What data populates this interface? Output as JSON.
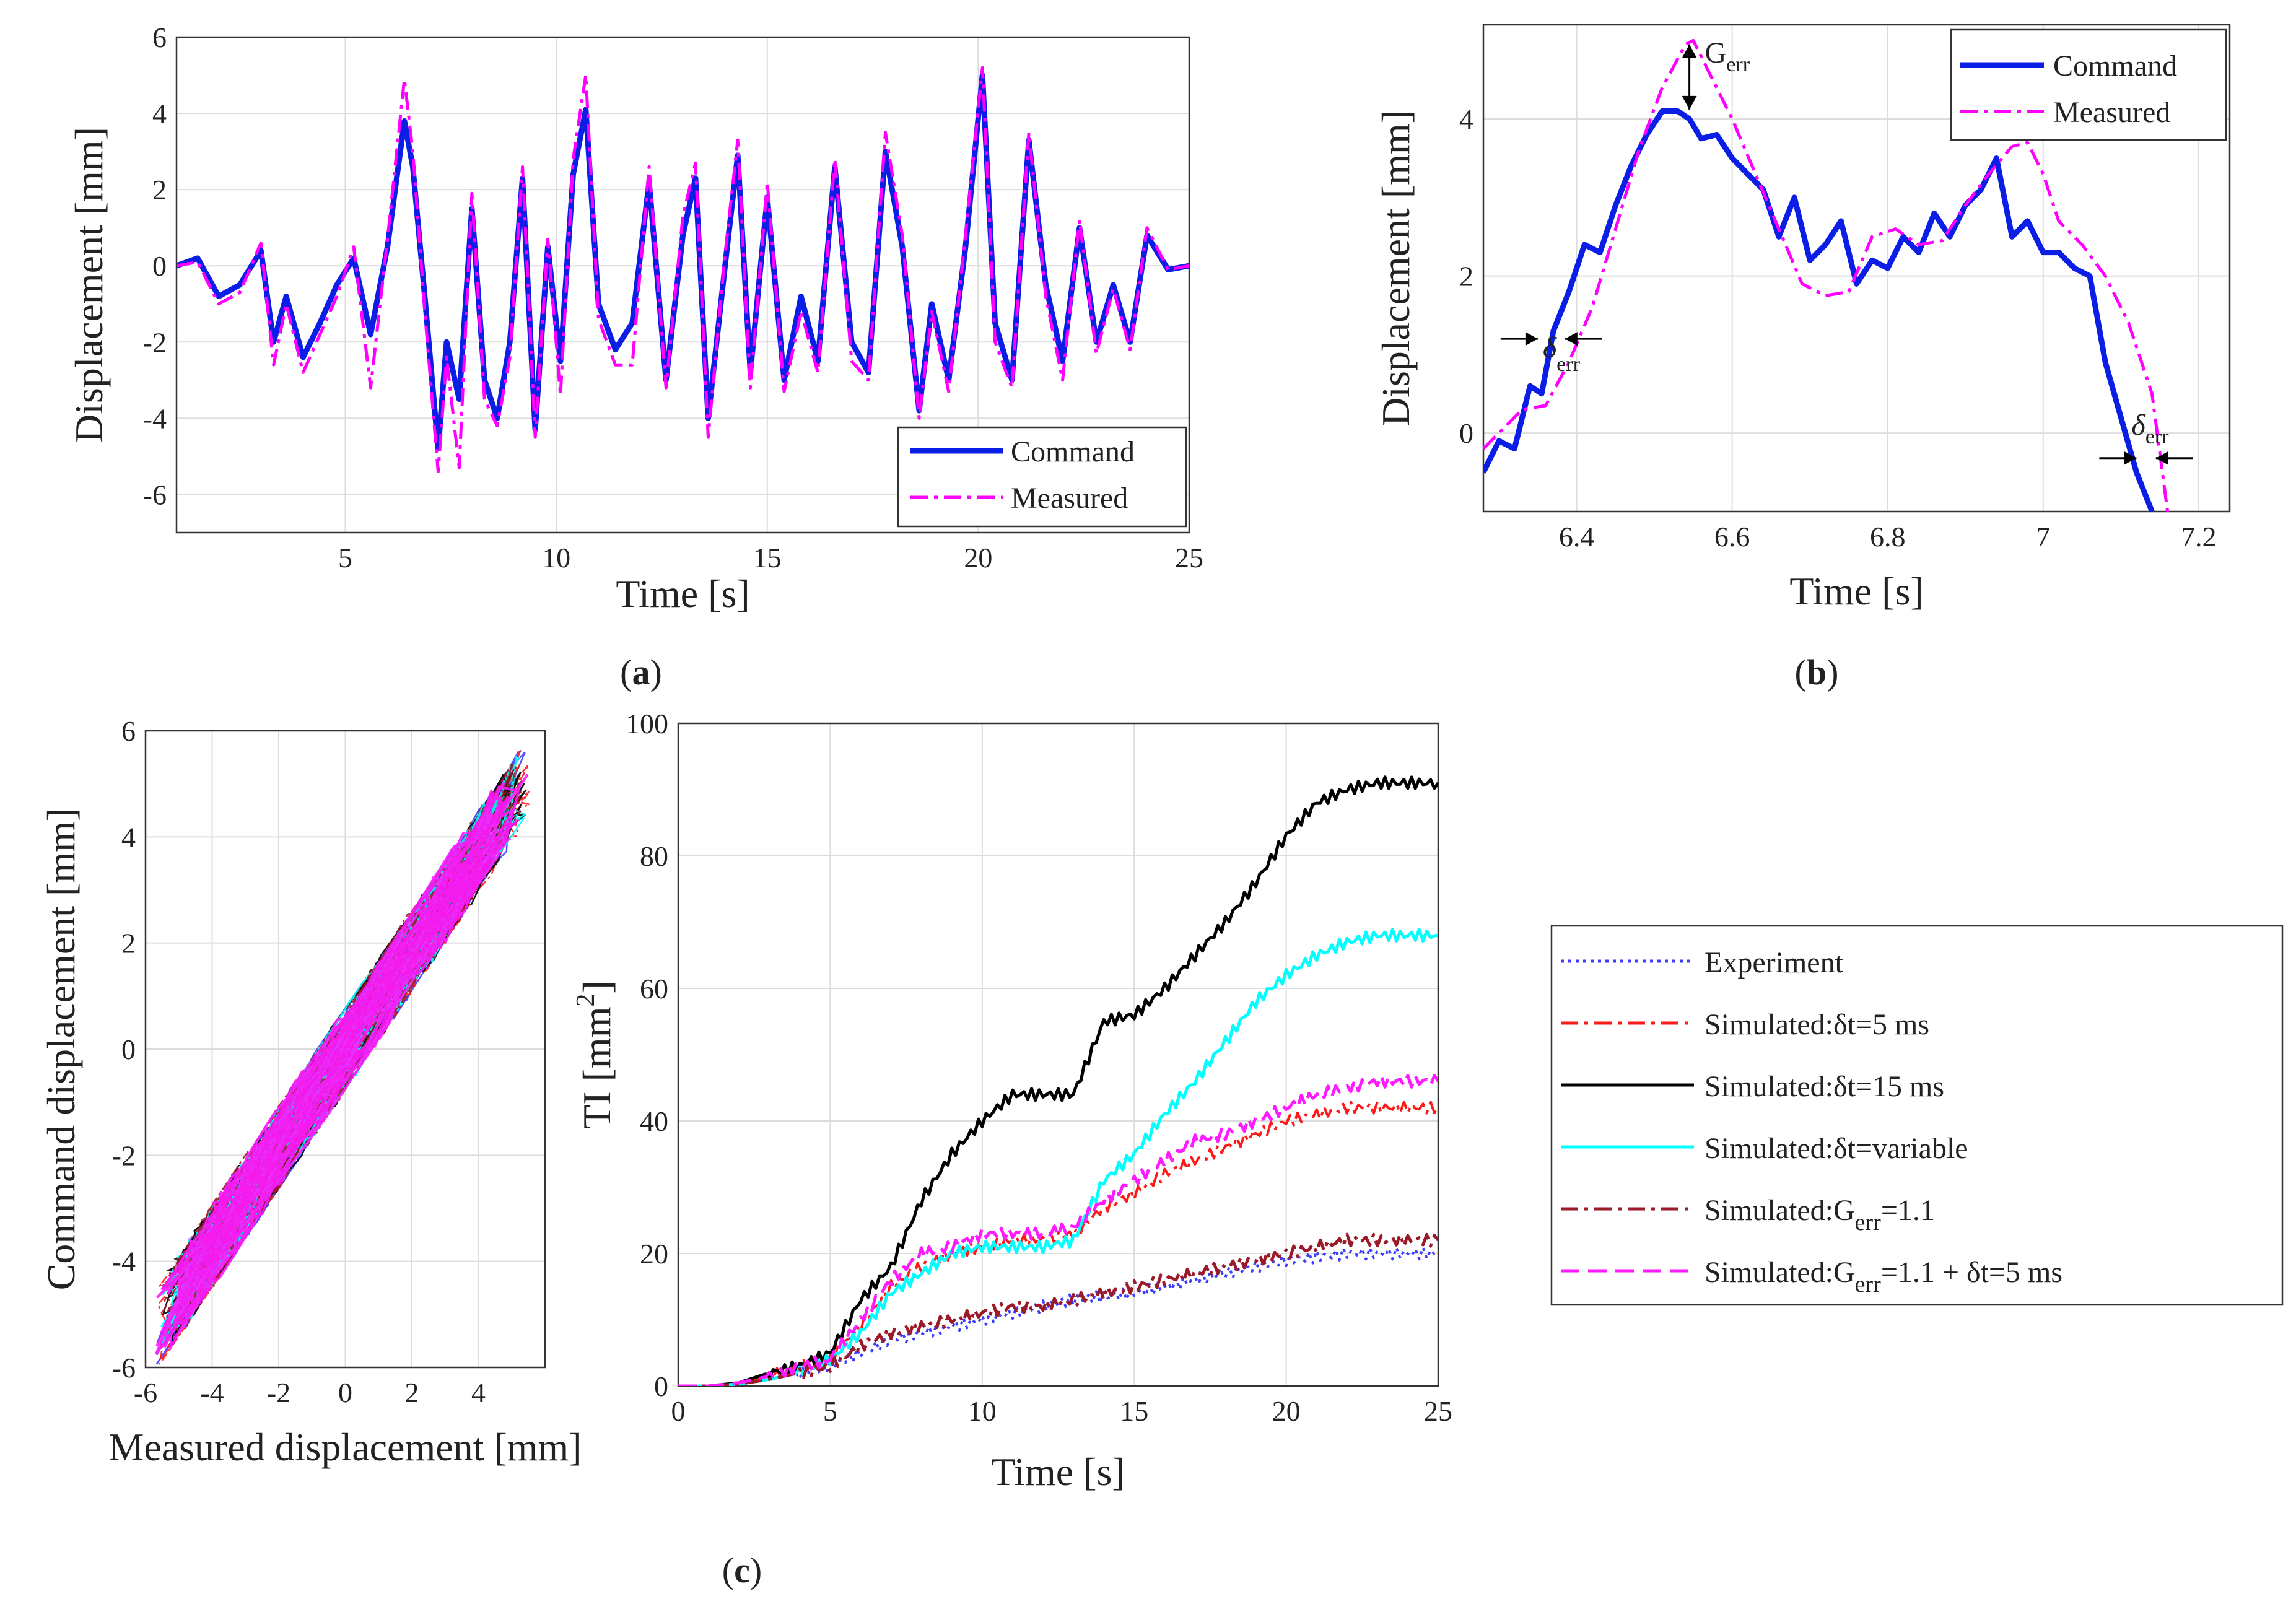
{
  "figure": {
    "captions": {
      "a": "a",
      "b": "b",
      "c": "c"
    }
  },
  "colors": {
    "command": "#0a1ee6",
    "measured": "#ff00ff",
    "experiment": "#3d3dff",
    "sim5": "#ff1a1a",
    "sim15": "#000000",
    "simvar": "#00ffff",
    "simgerr": "#9b1a2a",
    "simgerr5": "#ff1aff",
    "grid": "#dcdcdc"
  },
  "chart_data": [
    {
      "id": "a",
      "type": "line",
      "title": "",
      "xlabel": "Time [s]",
      "ylabel": "Displacement [mm]",
      "xlim": [
        1,
        25
      ],
      "ylim": [
        -7,
        6
      ],
      "xticks": [
        5,
        10,
        15,
        20,
        25
      ],
      "yticks": [
        -6,
        -4,
        -2,
        0,
        2,
        4,
        6
      ],
      "x": [
        1,
        1.5,
        2,
        2.5,
        3,
        3.3,
        3.6,
        4,
        4.4,
        4.8,
        5.2,
        5.6,
        6,
        6.4,
        6.6,
        6.9,
        7.2,
        7.4,
        7.7,
        8,
        8.3,
        8.6,
        8.9,
        9.2,
        9.5,
        9.8,
        10.1,
        10.4,
        10.7,
        11,
        11.4,
        11.8,
        12.2,
        12.6,
        13,
        13.3,
        13.6,
        14,
        14.3,
        14.6,
        15,
        15.4,
        15.8,
        16.2,
        16.6,
        17,
        17.4,
        17.8,
        18.2,
        18.6,
        18.9,
        19.3,
        19.7,
        20.1,
        20.4,
        20.8,
        21.2,
        21.6,
        22,
        22.4,
        22.8,
        23.2,
        23.6,
        24,
        24.5,
        25
      ],
      "series": [
        {
          "name": "Command",
          "style": "solid",
          "values": [
            0,
            0.2,
            -0.8,
            -0.5,
            0.4,
            -2,
            -0.8,
            -2.4,
            -1.5,
            -0.5,
            0.2,
            -1.8,
            0.5,
            3.8,
            2.6,
            -1,
            -4.8,
            -2,
            -3.5,
            1.5,
            -3,
            -4,
            -2,
            2.3,
            -4.3,
            0.5,
            -2.5,
            2.4,
            4.1,
            -1,
            -2.2,
            -1.5,
            2.2,
            -3,
            0.8,
            2.3,
            -4,
            0,
            2.9,
            -2.8,
            1.8,
            -3,
            -0.8,
            -2.5,
            2.6,
            -2,
            -2.8,
            3,
            0.5,
            -3.8,
            -1,
            -3,
            0.5,
            5,
            -1.5,
            -3,
            3.3,
            -0.5,
            -2.5,
            1,
            -2,
            -0.5,
            -2,
            0.8,
            -0.1,
            0
          ]
        },
        {
          "name": "Measured",
          "style": "dashdot",
          "values": [
            0,
            0.1,
            -1,
            -0.7,
            0.6,
            -2.6,
            -1,
            -2.8,
            -1.8,
            -0.8,
            0.5,
            -3.2,
            0.7,
            4.9,
            3,
            -1.4,
            -5.4,
            -2.4,
            -5.3,
            1.9,
            -3.5,
            -4.2,
            -2.4,
            2.6,
            -4.5,
            0.7,
            -3.4,
            2.8,
            5,
            -1.4,
            -2.6,
            -2.6,
            2.6,
            -3.2,
            1.3,
            2.7,
            -4.5,
            0.3,
            3.3,
            -3.2,
            2.2,
            -3.3,
            -1.2,
            -2.8,
            2.8,
            -2.5,
            -3,
            3.5,
            0.8,
            -4,
            -1.2,
            -3.3,
            0.8,
            5.2,
            -2,
            -3.2,
            3.5,
            -0.8,
            -3,
            1.2,
            -2.3,
            -0.6,
            -2.2,
            1,
            -0.1,
            0
          ]
        }
      ],
      "legend": [
        "Command",
        "Measured"
      ],
      "legend_position": "bottom-right"
    },
    {
      "id": "b",
      "type": "line",
      "xlabel": "Time [s]",
      "ylabel": "Displacement [mm]",
      "xlim": [
        6.28,
        7.24
      ],
      "ylim": [
        -1,
        5.2
      ],
      "xticks": [
        6.4,
        6.6,
        6.8,
        7,
        7.2
      ],
      "xtick_labels": [
        "6.4",
        "6.6",
        "6.8",
        "7",
        "7.2"
      ],
      "yticks": [
        0,
        2,
        4
      ],
      "series": [
        {
          "name": "Command",
          "style": "solid",
          "x": [
            6.28,
            6.3,
            6.32,
            6.34,
            6.355,
            6.37,
            6.39,
            6.41,
            6.43,
            6.45,
            6.47,
            6.49,
            6.51,
            6.53,
            6.545,
            6.56,
            6.58,
            6.6,
            6.62,
            6.64,
            6.66,
            6.68,
            6.7,
            6.72,
            6.74,
            6.76,
            6.78,
            6.8,
            6.82,
            6.84,
            6.86,
            6.88,
            6.9,
            6.92,
            6.94,
            6.96,
            6.98,
            7.0,
            7.02,
            7.04,
            7.06,
            7.08,
            7.1,
            7.12,
            7.14
          ],
          "values": [
            -0.5,
            -0.1,
            -0.2,
            0.6,
            0.5,
            1.3,
            1.8,
            2.4,
            2.3,
            2.9,
            3.4,
            3.8,
            4.1,
            4.1,
            4.0,
            3.75,
            3.8,
            3.5,
            3.3,
            3.1,
            2.5,
            3.0,
            2.2,
            2.4,
            2.7,
            1.9,
            2.2,
            2.1,
            2.5,
            2.3,
            2.8,
            2.5,
            2.9,
            3.1,
            3.5,
            2.5,
            2.7,
            2.3,
            2.3,
            2.1,
            2.0,
            0.9,
            0.2,
            -0.5,
            -1.0
          ]
        },
        {
          "name": "Measured",
          "style": "dashdot",
          "x": [
            6.28,
            6.3,
            6.33,
            6.36,
            6.39,
            6.42,
            6.45,
            6.48,
            6.51,
            6.54,
            6.55,
            6.57,
            6.6,
            6.63,
            6.66,
            6.69,
            6.72,
            6.75,
            6.78,
            6.81,
            6.84,
            6.87,
            6.9,
            6.93,
            6.96,
            6.98,
            7.0,
            7.02,
            7.05,
            7.08,
            7.11,
            7.14,
            7.16
          ],
          "values": [
            -0.2,
            0.0,
            0.3,
            0.35,
            0.9,
            1.6,
            2.6,
            3.6,
            4.4,
            4.95,
            5.0,
            4.6,
            4.0,
            3.3,
            2.6,
            1.9,
            1.75,
            1.8,
            2.5,
            2.6,
            2.4,
            2.45,
            2.9,
            3.3,
            3.65,
            3.7,
            3.3,
            2.7,
            2.4,
            2.0,
            1.4,
            0.5,
            -1.0
          ]
        }
      ],
      "legend": [
        "Command",
        "Measured"
      ],
      "legend_position": "top-right",
      "annotations": [
        "G",
        "err",
        "δ",
        "err",
        "δ",
        "err"
      ]
    },
    {
      "id": "c-scatter",
      "type": "scatter",
      "xlabel": "Measured displacement [mm]",
      "ylabel": "Command displacement [mm]",
      "xlim": [
        -6,
        6
      ],
      "ylim": [
        -6,
        6
      ],
      "xticks": [
        -6,
        -4,
        -2,
        0,
        2,
        4
      ],
      "yticks": [
        -6,
        -4,
        -2,
        0,
        2,
        4,
        6
      ],
      "series_names": [
        "Experiment",
        "Simulated: δt=5 ms",
        "Simulated: δt=15 ms",
        "Simulated: δt=variable",
        "Simulated: Gerr=1.1",
        "Simulated: Gerr=1.1 + δt=5 ms"
      ],
      "trend": {
        "slope": 0.93,
        "intercept": 0,
        "x_range": [
          -5.8,
          5.6
        ]
      }
    },
    {
      "id": "c-ti",
      "type": "line",
      "xlabel": "Time [s]",
      "ylabel": "TI [mm",
      "ylabel_sup": "2",
      "ylabel_end": "]",
      "xlim": [
        0,
        25
      ],
      "ylim": [
        0,
        100
      ],
      "xticks": [
        0,
        5,
        10,
        15,
        20,
        25
      ],
      "yticks": [
        0,
        20,
        40,
        60,
        80,
        100
      ],
      "x": [
        0,
        1,
        2,
        3,
        4,
        5,
        6,
        7,
        8,
        9,
        10,
        11,
        12,
        13,
        14,
        15,
        16,
        17,
        18,
        19,
        20,
        21,
        22,
        23,
        24,
        25
      ],
      "series": [
        {
          "name": "Experiment",
          "style": "dotted",
          "values": [
            0,
            0,
            0.3,
            1,
            2,
            3,
            5,
            7,
            8,
            9,
            10,
            11,
            12,
            13,
            13.5,
            14,
            15,
            16,
            17,
            18,
            19,
            19.5,
            20,
            20,
            20,
            20
          ]
        },
        {
          "name": "Simulated:δt=5 ms",
          "style": "dashdot",
          "values": [
            0,
            0,
            0.5,
            1.5,
            3,
            4,
            9,
            15,
            18,
            20,
            21,
            22,
            22,
            23,
            27,
            29,
            32,
            34,
            36,
            38,
            40,
            41,
            42,
            42,
            42,
            42
          ]
        },
        {
          "name": "Simulated:δt=15 ms",
          "style": "solid",
          "values": [
            0,
            0,
            0.5,
            2,
            3,
            5,
            13,
            18,
            28,
            35,
            40,
            44,
            44,
            44,
            55,
            56,
            60,
            65,
            70,
            76,
            83,
            88,
            90,
            91,
            91,
            91
          ]
        },
        {
          "name": "Simulated:δt=variable",
          "style": "solid",
          "values": [
            0,
            0,
            0.3,
            1,
            2,
            4,
            8,
            14,
            17,
            20,
            21,
            21,
            21,
            22,
            31,
            35,
            41,
            46,
            52,
            58,
            62,
            65,
            67,
            68,
            68,
            68
          ]
        },
        {
          "name": "Simulated:Gerr=1.1",
          "style": "dashdot",
          "values": [
            0,
            0,
            0.3,
            1,
            2,
            3,
            6,
            8,
            9,
            10,
            11,
            12,
            12,
            13,
            14,
            15,
            16,
            17,
            18,
            19,
            20,
            21,
            22,
            22,
            22,
            22
          ]
        },
        {
          "name": "Simulated:Gerr=1.1 + δt=5 ms",
          "style": "dashed",
          "values": [
            0,
            0,
            0.5,
            1.5,
            3,
            4,
            10,
            16,
            20,
            21,
            23,
            23,
            23,
            24,
            28,
            31,
            34,
            37,
            38,
            40,
            42,
            44,
            45,
            46,
            46,
            46
          ]
        }
      ]
    }
  ],
  "legend_c": {
    "items": [
      {
        "label": "Experiment"
      },
      {
        "label": "Simulated:δt=5 ms"
      },
      {
        "label": "Simulated:δt=15 ms"
      },
      {
        "label": "Simulated:δt=variable"
      },
      {
        "label": "Simulated:G",
        "sub": "err",
        "tail": "=1.1"
      },
      {
        "label": "Simulated:G",
        "sub": "err",
        "tail": "=1.1 + δt=5 ms"
      }
    ]
  }
}
